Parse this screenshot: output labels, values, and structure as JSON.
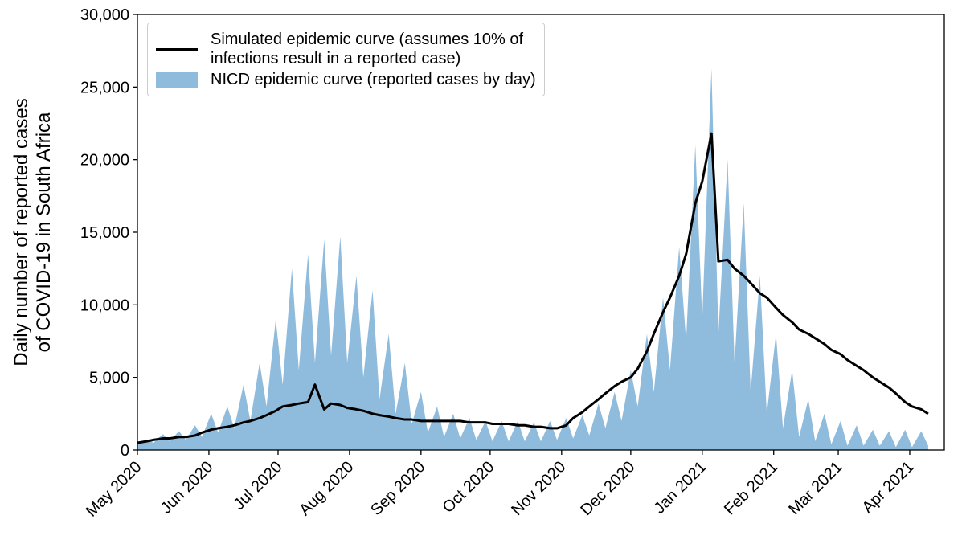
{
  "chart_data": {
    "type": "line",
    "ylabel": "Daily number of reported cases\nof COVID-19 in South Africa",
    "x": [
      0,
      4,
      7,
      11,
      14,
      18,
      21,
      25,
      28,
      32,
      35,
      39,
      42,
      46,
      49,
      53,
      56,
      60,
      63,
      67,
      70,
      74,
      77,
      81,
      84,
      88,
      91,
      95,
      98,
      102,
      105,
      109,
      112,
      116,
      119,
      123,
      126,
      130,
      133,
      137,
      140,
      144,
      147,
      151,
      154,
      158,
      161,
      165,
      168,
      172,
      175,
      179,
      182,
      186,
      189,
      193,
      196,
      200,
      203,
      207,
      210,
      214,
      217,
      221,
      224,
      228,
      231,
      235,
      238,
      242,
      245,
      249,
      252,
      256,
      259,
      263,
      266,
      270,
      273,
      277,
      280,
      284,
      287,
      291,
      294,
      298,
      301,
      305,
      308,
      312,
      315,
      319,
      322,
      326,
      329,
      333,
      336,
      340,
      343
    ],
    "series": [
      {
        "name": "Simulated epidemic curve (assumes 10% of\ninfections result in a reported case)",
        "type": "line",
        "color": "#000000",
        "values": [
          500,
          600,
          700,
          800,
          800,
          900,
          900,
          1000,
          1200,
          1400,
          1500,
          1600,
          1700,
          1900,
          2000,
          2200,
          2400,
          2700,
          3000,
          3100,
          3200,
          3300,
          4500,
          2800,
          3200,
          3100,
          2900,
          2800,
          2700,
          2500,
          2400,
          2300,
          2200,
          2100,
          2100,
          2000,
          2000,
          2000,
          2000,
          2000,
          2000,
          1900,
          1900,
          1900,
          1800,
          1800,
          1800,
          1700,
          1700,
          1600,
          1600,
          1500,
          1500,
          1700,
          2200,
          2600,
          3000,
          3500,
          3900,
          4400,
          4700,
          5000,
          5600,
          6800,
          8000,
          9500,
          10500,
          12000,
          13500,
          17000,
          18500,
          21800,
          13000,
          13100,
          12500,
          12000,
          11500,
          10800,
          10500,
          9800,
          9300,
          8800,
          8300,
          8000,
          7700,
          7300,
          6900,
          6600,
          6200,
          5800,
          5500,
          5000,
          4700,
          4300,
          3900,
          3300,
          3000,
          2800,
          2500
        ]
      },
      {
        "name": "NICD epidemic curve (reported cases by day)",
        "type": "area",
        "color": "#8fbbdc",
        "values": [
          400,
          700,
          500,
          1100,
          600,
          1300,
          700,
          1700,
          900,
          2500,
          1200,
          3000,
          1500,
          4500,
          2000,
          6000,
          3000,
          9000,
          4500,
          12500,
          5500,
          13500,
          6000,
          14500,
          6500,
          14700,
          6000,
          12000,
          5000,
          11000,
          3500,
          8000,
          2500,
          6000,
          1800,
          4000,
          1200,
          3000,
          900,
          2500,
          800,
          2200,
          700,
          2000,
          600,
          2000,
          600,
          2000,
          600,
          1900,
          600,
          2000,
          700,
          2200,
          800,
          2400,
          1000,
          3200,
          1500,
          4000,
          2000,
          5500,
          3000,
          8000,
          4000,
          10500,
          5500,
          14000,
          7500,
          21000,
          9000,
          26300,
          8000,
          20000,
          6000,
          17000,
          4000,
          12000,
          2500,
          8000,
          1500,
          5500,
          900,
          3500,
          600,
          2500,
          400,
          2000,
          300,
          1700,
          300,
          1400,
          300,
          1300,
          200,
          1400,
          200,
          1300,
          300
        ]
      }
    ],
    "xlim": [
      0,
      350
    ],
    "xticks": [
      {
        "value": 0,
        "label": "May 2020"
      },
      {
        "value": 31,
        "label": "Jun 2020"
      },
      {
        "value": 61,
        "label": "Jul 2020"
      },
      {
        "value": 92,
        "label": "Aug 2020"
      },
      {
        "value": 123,
        "label": "Sep 2020"
      },
      {
        "value": 153,
        "label": "Oct 2020"
      },
      {
        "value": 184,
        "label": "Nov 2020"
      },
      {
        "value": 214,
        "label": "Dec 2020"
      },
      {
        "value": 245,
        "label": "Jan 2021"
      },
      {
        "value": 276,
        "label": "Feb 2021"
      },
      {
        "value": 304,
        "label": "Mar 2021"
      },
      {
        "value": 335,
        "label": "Apr 2021"
      }
    ],
    "ylim": [
      0,
      30000
    ],
    "yticks": [
      0,
      {
        "value": 5000,
        "label": "5,000"
      },
      {
        "value": 10000,
        "label": "10,000"
      },
      {
        "value": 15000,
        "label": "15,000"
      },
      {
        "value": 20000,
        "label": "20,000"
      },
      {
        "value": 25000,
        "label": "25,000"
      },
      {
        "value": 30000,
        "label": "30,000"
      }
    ],
    "legend": "upper left"
  }
}
